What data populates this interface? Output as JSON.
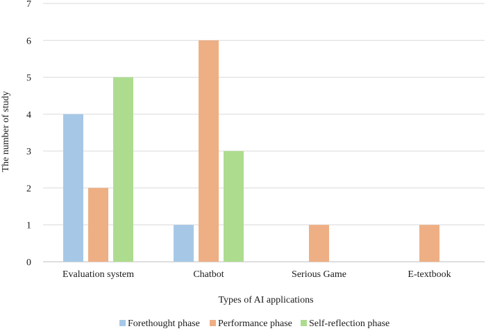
{
  "chart_data": {
    "type": "bar",
    "title": "",
    "xlabel": "Types of AI applications",
    "ylabel": "The number of study",
    "ylim": [
      0,
      7
    ],
    "yticks": [
      0,
      1,
      2,
      3,
      4,
      5,
      6,
      7
    ],
    "grid": true,
    "legend_position": "bottom",
    "categories": [
      "Evaluation system",
      "Chatbot",
      "Serious Game",
      "E-textbook"
    ],
    "series": [
      {
        "name": "Forethought phase",
        "color": "#a6c8e6",
        "values": [
          4,
          1,
          0,
          0
        ]
      },
      {
        "name": "Performance phase",
        "color": "#eeaf84",
        "values": [
          2,
          6,
          1,
          1
        ]
      },
      {
        "name": "Self-reflection phase",
        "color": "#addc8f",
        "values": [
          5,
          3,
          0,
          0
        ]
      }
    ]
  }
}
